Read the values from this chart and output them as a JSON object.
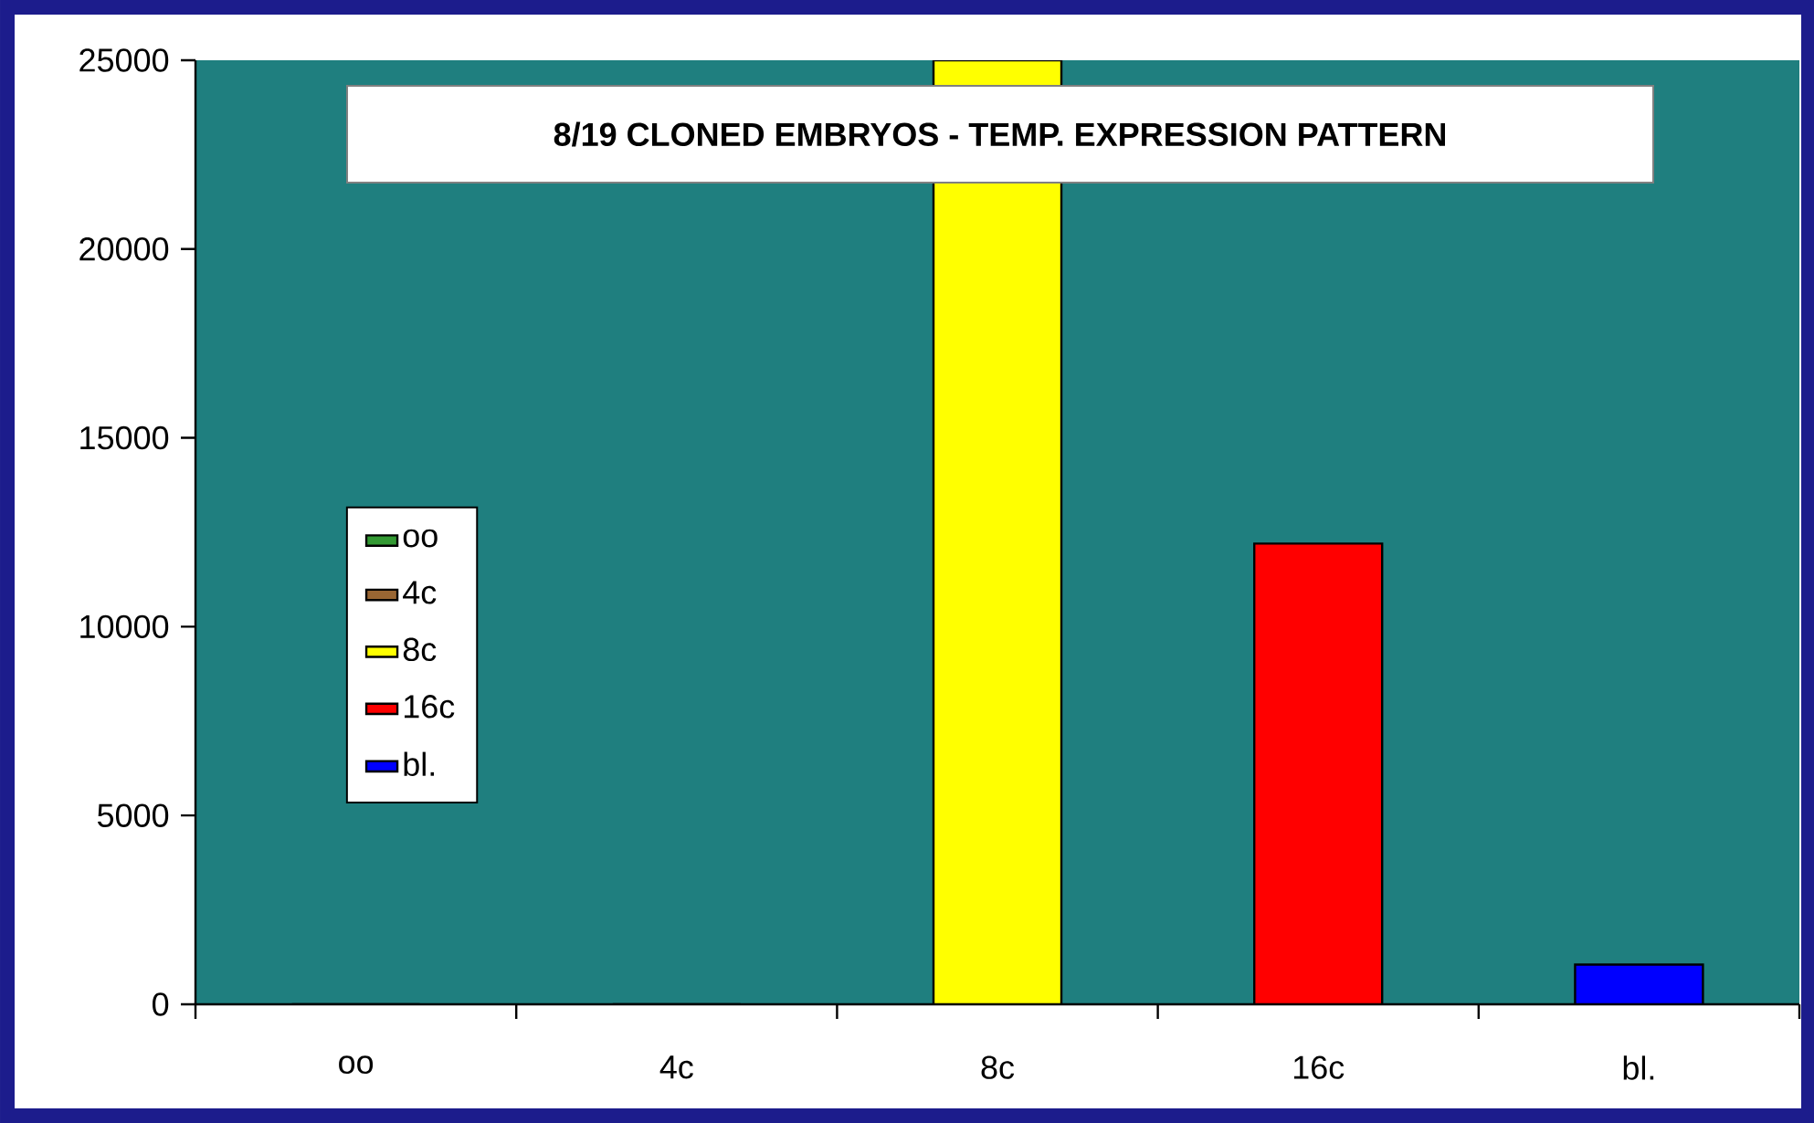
{
  "chart_data": {
    "type": "bar",
    "title": "8/19 CLONED EMBRYOS - TEMP. EXPRESSION PATTERN",
    "categories": [
      "oo",
      "4c",
      "8c",
      "16c",
      "bl."
    ],
    "series": [
      {
        "name": "oo",
        "color": "#339933",
        "values": [
          0,
          null,
          null,
          null,
          null
        ]
      },
      {
        "name": "4c",
        "color": "#996633",
        "values": [
          null,
          0,
          null,
          null,
          null
        ]
      },
      {
        "name": "8c",
        "color": "#ffff00",
        "values": [
          null,
          null,
          25000,
          null,
          null
        ]
      },
      {
        "name": "16c",
        "color": "#ff0000",
        "values": [
          null,
          null,
          null,
          12200,
          null
        ]
      },
      {
        "name": "bl.",
        "color": "#0000ff",
        "values": [
          null,
          null,
          null,
          null,
          1050
        ]
      }
    ],
    "ylim": [
      0,
      25000
    ],
    "yticks": [
      0,
      5000,
      10000,
      15000,
      20000,
      25000
    ],
    "grid": false,
    "legend": "left"
  }
}
